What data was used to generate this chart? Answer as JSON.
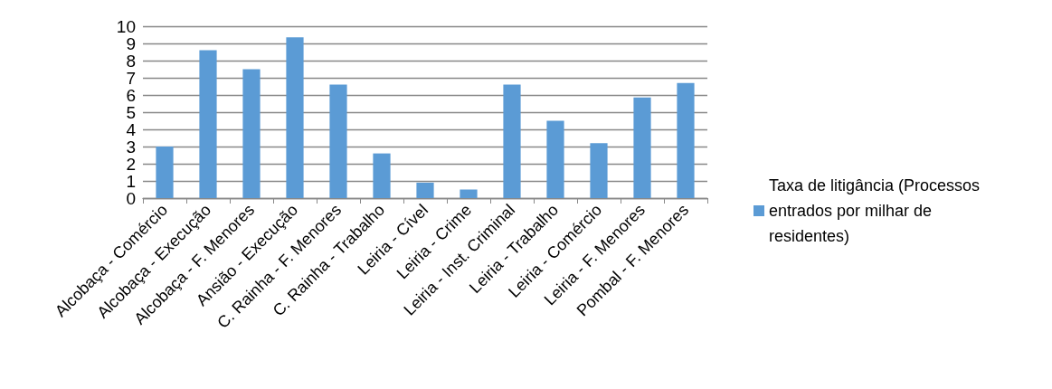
{
  "chart_data": {
    "type": "bar",
    "categories": [
      "Alcobaça - Comércio",
      "Alcobaça - Execução",
      "Alcobaça - F. Menores",
      "Ansião - Execução",
      "C. Rainha - F. Menores",
      "C. Rainha - Trabalho",
      "Leiria - Cível",
      "Leiria - Crime",
      "Leiria - Inst. Criminal",
      "Leiria - Trabalho",
      "Leiria - Comércio",
      "Leiria - F. Menores",
      "Pombal - F. Menores"
    ],
    "series": [
      {
        "name": "Taxa de litigância (Processos entrados por milhar de residentes)",
        "color": "#5b9bd5",
        "values": [
          3.0,
          8.6,
          7.5,
          9.35,
          6.6,
          2.6,
          0.9,
          0.5,
          6.6,
          4.5,
          3.2,
          5.85,
          6.7
        ]
      }
    ],
    "ylim": [
      0,
      10
    ],
    "yticks": [
      0,
      1,
      2,
      3,
      4,
      5,
      6,
      7,
      8,
      9,
      10
    ],
    "grid": "y",
    "legend": "right"
  }
}
